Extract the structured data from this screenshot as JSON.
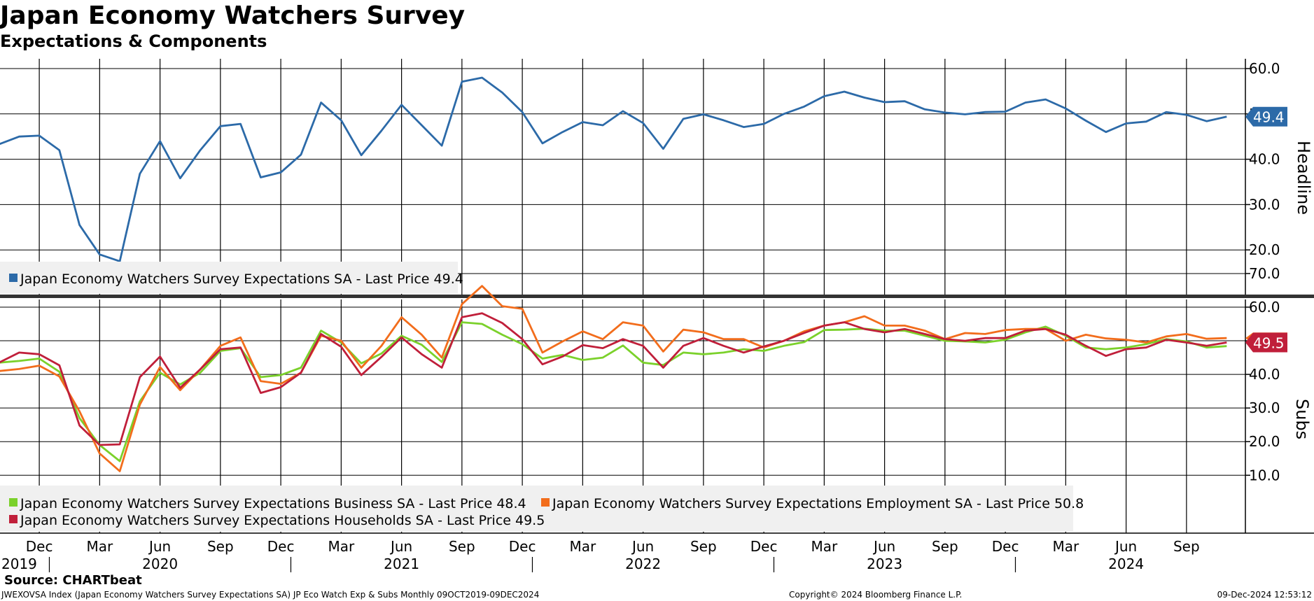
{
  "header": {
    "title": "Japan Economy Watchers Survey",
    "subtitle": "Expectations & Components"
  },
  "footer": {
    "source": "Source: CHARTbeat",
    "description": "JWEXOVSA Index (Japan Economy Watchers Survey Expectations SA) JP Eco Watch Exp & Subs  Monthly 09OCT2019-09DEC2024",
    "copyright": "Copyright© 2024 Bloomberg Finance L.P.",
    "timestamp": "09-Dec-2024 12:53:12"
  },
  "chart_data": [
    {
      "type": "line",
      "panel": "top",
      "ylabel": "Headline",
      "ylim": [
        10,
        62
      ],
      "yticks": [
        "20.0",
        "30.0",
        "40.0",
        "50.0",
        "60.0"
      ],
      "x_months": [
        "2019-10",
        "2019-11",
        "2019-12",
        "2020-01",
        "2020-02",
        "2020-03",
        "2020-04",
        "2020-05",
        "2020-06",
        "2020-07",
        "2020-08",
        "2020-09",
        "2020-10",
        "2020-11",
        "2020-12",
        "2021-01",
        "2021-02",
        "2021-03",
        "2021-04",
        "2021-05",
        "2021-06",
        "2021-07",
        "2021-08",
        "2021-09",
        "2021-10",
        "2021-11",
        "2021-12",
        "2022-01",
        "2022-02",
        "2022-03",
        "2022-04",
        "2022-05",
        "2022-06",
        "2022-07",
        "2022-08",
        "2022-09",
        "2022-10",
        "2022-11",
        "2022-12",
        "2023-01",
        "2023-02",
        "2023-03",
        "2023-04",
        "2023-05",
        "2023-06",
        "2023-07",
        "2023-08",
        "2023-09",
        "2023-10",
        "2023-11",
        "2023-12",
        "2024-01",
        "2024-02",
        "2024-03",
        "2024-04",
        "2024-05",
        "2024-06",
        "2024-07",
        "2024-08",
        "2024-09",
        "2024-10",
        "2024-11"
      ],
      "series": [
        {
          "name": "Japan Economy Watchers Survey Expectations SA",
          "legend": "Japan Economy Watchers Survey Expectations SA - Last Price 49.4",
          "last_label": "49.4",
          "color": "#2c6aa8",
          "values": [
            43.3,
            45.0,
            45.2,
            42.0,
            25.5,
            19.0,
            17.5,
            36.8,
            44.0,
            35.8,
            42.0,
            47.3,
            47.8,
            36.0,
            37.1,
            41.0,
            52.5,
            48.6,
            40.9,
            46.3,
            52.0,
            47.5,
            43.0,
            57.1,
            58.0,
            54.7,
            50.4,
            43.5,
            46.0,
            48.2,
            47.5,
            50.6,
            48.0,
            42.3,
            48.9,
            49.9,
            48.6,
            47.1,
            47.8,
            50.0,
            51.6,
            53.9,
            54.9,
            53.6,
            52.6,
            52.8,
            51.0,
            50.3,
            49.9,
            50.4,
            50.5,
            52.5,
            53.2,
            51.2,
            48.5,
            46.0,
            47.9,
            48.3,
            50.4,
            49.8,
            48.4,
            49.4
          ]
        }
      ]
    },
    {
      "type": "line",
      "panel": "bottom",
      "ylabel": "Subs",
      "ylim": [
        1,
        72
      ],
      "yticks": [
        "10.0",
        "20.0",
        "30.0",
        "40.0",
        "50.0",
        "60.0",
        "70.0"
      ],
      "series": [
        {
          "name": "Japan Economy Watchers Survey Expectations Business SA",
          "legend": "Japan Economy Watchers Survey Expectations Business SA - Last Price    48.4",
          "color": "#7bd12b",
          "values": [
            43.5,
            44.0,
            44.7,
            40.8,
            27.0,
            19.0,
            14.2,
            32.0,
            40.5,
            37.0,
            40.5,
            47.0,
            47.8,
            39.2,
            39.8,
            42.0,
            53.0,
            49.5,
            43.3,
            46.2,
            51.5,
            48.8,
            43.7,
            55.5,
            55.0,
            51.8,
            49.0,
            44.7,
            45.8,
            44.3,
            45.0,
            48.6,
            43.5,
            42.8,
            46.5,
            46.0,
            46.5,
            47.5,
            47.0,
            48.5,
            49.6,
            53.2,
            53.3,
            53.6,
            53.0,
            53.0,
            51.5,
            50.0,
            49.8,
            49.5,
            50.3,
            52.5,
            54.2,
            51.5,
            48.0,
            47.5,
            48.0,
            49.0,
            50.5,
            49.8,
            48.0,
            48.4
          ]
        },
        {
          "name": "Japan Economy Watchers Survey Expectations Employment SA",
          "legend": "Japan Economy Watchers Survey Expectations Employment SA - Last Price 50.8",
          "last_label": "50.8",
          "color": "#f26d1c",
          "values": [
            41.0,
            41.6,
            42.6,
            39.4,
            29.0,
            16.5,
            11.2,
            31.0,
            42.2,
            35.3,
            41.5,
            48.5,
            51.0,
            38.0,
            37.2,
            40.5,
            51.5,
            50.0,
            42.0,
            48.5,
            57.0,
            51.8,
            45.0,
            60.9,
            66.3,
            60.3,
            59.5,
            46.5,
            49.8,
            52.8,
            50.5,
            55.5,
            54.5,
            46.8,
            53.3,
            52.5,
            50.5,
            50.5,
            48.0,
            50.0,
            52.8,
            54.5,
            55.5,
            57.3,
            54.5,
            54.5,
            53.0,
            50.5,
            52.3,
            52.0,
            53.2,
            53.5,
            53.5,
            50.0,
            51.8,
            50.7,
            50.3,
            49.5,
            51.3,
            52.0,
            50.6,
            50.8
          ]
        },
        {
          "name": "Japan Economy Watchers Survey Expectations Households SA",
          "legend": "Japan Economy Watchers Survey Expectations Households SA - Last Price 49.5",
          "last_label": "49.5",
          "color": "#c01f3a",
          "values": [
            43.5,
            46.5,
            46.0,
            42.7,
            24.8,
            19.0,
            19.2,
            39.2,
            45.3,
            36.0,
            41.5,
            47.5,
            48.0,
            34.5,
            36.2,
            40.5,
            52.0,
            48.2,
            39.8,
            45.2,
            51.0,
            46.0,
            42.0,
            57.0,
            58.2,
            55.3,
            50.5,
            43.0,
            45.3,
            48.7,
            47.8,
            50.5,
            48.5,
            42.0,
            48.5,
            50.8,
            48.5,
            46.5,
            48.3,
            50.0,
            52.3,
            54.5,
            55.5,
            53.5,
            52.5,
            53.5,
            52.0,
            50.5,
            50.0,
            50.8,
            50.8,
            53.0,
            53.5,
            51.8,
            48.5,
            45.5,
            47.5,
            48.0,
            50.3,
            49.5,
            48.5,
            49.5
          ]
        }
      ]
    }
  ],
  "x_axis": {
    "months": [
      "Dec",
      "Mar",
      "Jun",
      "Sep",
      "Dec",
      "Mar",
      "Jun",
      "Sep",
      "Dec",
      "Mar",
      "Jun",
      "Sep",
      "Dec",
      "Mar",
      "Jun",
      "Sep",
      "Dec",
      "Mar",
      "Jun",
      "Sep"
    ],
    "years": [
      "2019",
      "2020",
      "2021",
      "2022",
      "2023",
      "2024"
    ]
  }
}
